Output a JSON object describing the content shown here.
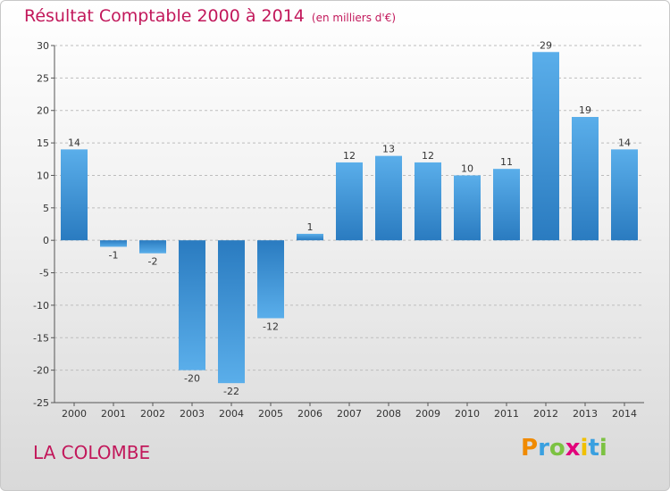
{
  "chart_data": {
    "type": "bar",
    "title": "Résultat Comptable 2000 à 2014",
    "subtitle": "(en milliers d'€)",
    "categories": [
      "2000",
      "2001",
      "2002",
      "2003",
      "2004",
      "2005",
      "2006",
      "2007",
      "2008",
      "2009",
      "2010",
      "2011",
      "2012",
      "2013",
      "2014"
    ],
    "values": [
      14,
      -1,
      -2,
      -20,
      -22,
      -12,
      1,
      12,
      13,
      12,
      10,
      11,
      29,
      19,
      14
    ],
    "value_labels": [
      "14",
      "-1",
      "-2",
      "-20",
      "-22",
      "-12",
      "1",
      "12",
      "13",
      "12",
      "10",
      "11",
      "29",
      "19",
      "14"
    ],
    "ylim": [
      -25,
      30
    ],
    "yticks": [
      30,
      25,
      20,
      15,
      10,
      5,
      0,
      -5,
      -10,
      -15,
      -20,
      -25
    ],
    "ytick_labels": [
      "30",
      "25",
      "20",
      "15",
      "10",
      "5",
      "0",
      "-5",
      "-10",
      "-15",
      "-20",
      "-25"
    ],
    "xlabel": "",
    "ylabel": "",
    "grid": "horizontal dashed",
    "bar_color": "#3a8fd6"
  },
  "footer": {
    "place": "LA COLOMBE",
    "brand_letters": [
      "P",
      "r",
      "o",
      "x",
      "i",
      "t",
      "i"
    ],
    "brand_colors": [
      "#f08a00",
      "#3aa0e0",
      "#7cc242",
      "#e2007a",
      "#f0c000",
      "#3aa0e0",
      "#7cc242"
    ]
  },
  "colors": {
    "title": "#c2185b",
    "bar": "#3a8fd6"
  }
}
